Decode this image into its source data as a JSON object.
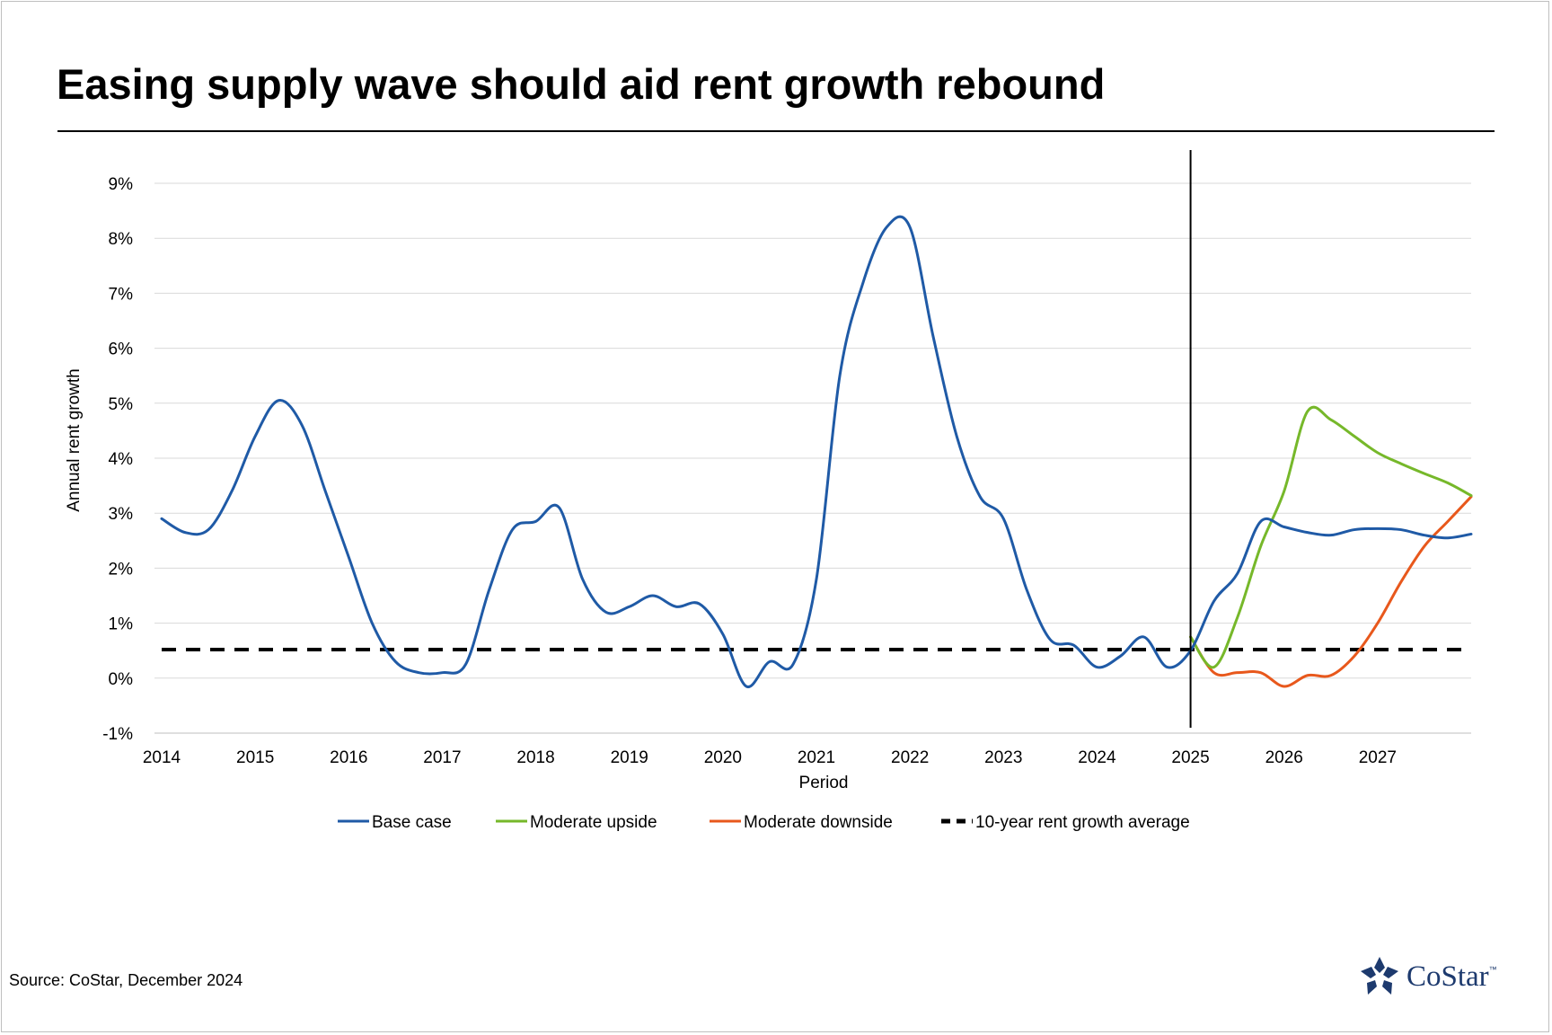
{
  "title": "Easing supply wave should aid rent growth rebound",
  "source": "Source: CoStar, December 2024",
  "logo": {
    "text": "CoStar",
    "tm": "™",
    "icon": "costar-star-icon",
    "color": "#1d3a6e"
  },
  "chart_data": {
    "type": "line",
    "title": "Easing supply wave should aid rent growth rebound",
    "xlabel": "Period",
    "ylabel": "Annual rent growth",
    "x_ticks": [
      "2014",
      "2015",
      "2016",
      "2017",
      "2018",
      "2019",
      "2020",
      "2021",
      "2022",
      "2023",
      "2024",
      "2025",
      "2026",
      "2027"
    ],
    "xlim": [
      2014,
      2028.0
    ],
    "ylim": [
      -1,
      9
    ],
    "y_ticks": [
      "-1%",
      "0%",
      "1%",
      "2%",
      "3%",
      "4%",
      "5%",
      "6%",
      "7%",
      "8%",
      "9%"
    ],
    "y_tick_values": [
      -1,
      0,
      1,
      2,
      3,
      4,
      5,
      6,
      7,
      8,
      9
    ],
    "grid": true,
    "forecast_divider_x": 2025.0,
    "legend_position": "bottom",
    "series": [
      {
        "name": "Base case",
        "color": "#1f5aa6",
        "x": [
          2014.0,
          2014.25,
          2014.5,
          2014.75,
          2015.0,
          2015.25,
          2015.5,
          2015.75,
          2016.0,
          2016.25,
          2016.5,
          2016.75,
          2017.0,
          2017.25,
          2017.5,
          2017.75,
          2018.0,
          2018.25,
          2018.5,
          2018.75,
          2019.0,
          2019.25,
          2019.5,
          2019.75,
          2020.0,
          2020.25,
          2020.5,
          2020.75,
          2021.0,
          2021.25,
          2021.5,
          2021.75,
          2022.0,
          2022.25,
          2022.5,
          2022.75,
          2023.0,
          2023.25,
          2023.5,
          2023.75,
          2024.0,
          2024.25,
          2024.5,
          2024.75,
          2025.0,
          2025.25,
          2025.5,
          2025.75,
          2026.0,
          2026.25,
          2026.5,
          2026.75,
          2027.0,
          2027.25,
          2027.5,
          2027.75,
          2028.0
        ],
        "values": [
          2.9,
          2.65,
          2.7,
          3.4,
          4.4,
          5.05,
          4.6,
          3.4,
          2.2,
          1.0,
          0.3,
          0.1,
          0.1,
          0.25,
          1.6,
          2.7,
          2.85,
          3.1,
          1.8,
          1.2,
          1.3,
          1.5,
          1.3,
          1.35,
          0.8,
          -0.15,
          0.3,
          0.25,
          1.8,
          5.5,
          7.2,
          8.2,
          8.2,
          6.2,
          4.4,
          3.3,
          2.9,
          1.6,
          0.7,
          0.6,
          0.2,
          0.4,
          0.75,
          0.2,
          0.5,
          1.4,
          1.9,
          2.85,
          2.75,
          2.65,
          2.6,
          2.7,
          2.72,
          2.7,
          2.6,
          2.55,
          2.62
        ]
      },
      {
        "name": "Moderate upside",
        "color": "#76b82a",
        "x": [
          2025.0,
          2025.25,
          2025.5,
          2025.75,
          2026.0,
          2026.25,
          2026.5,
          2026.75,
          2027.0,
          2027.25,
          2027.5,
          2027.75,
          2028.0
        ],
        "values": [
          0.75,
          0.2,
          1.1,
          2.4,
          3.4,
          4.85,
          4.7,
          4.4,
          4.1,
          3.9,
          3.72,
          3.55,
          3.32
        ]
      },
      {
        "name": "Moderate downside",
        "color": "#e8581c",
        "x": [
          2025.0,
          2025.25,
          2025.5,
          2025.75,
          2026.0,
          2026.25,
          2026.5,
          2026.75,
          2027.0,
          2027.25,
          2027.5,
          2027.75,
          2028.0
        ],
        "values": [
          0.75,
          0.1,
          0.1,
          0.1,
          -0.15,
          0.05,
          0.05,
          0.4,
          1.0,
          1.75,
          2.4,
          2.85,
          3.3
        ]
      },
      {
        "name": "10-year rent growth average",
        "color": "#000000",
        "dashed": true,
        "x": [
          2014.0,
          2028.0
        ],
        "values": [
          0.52,
          0.52
        ]
      }
    ]
  }
}
